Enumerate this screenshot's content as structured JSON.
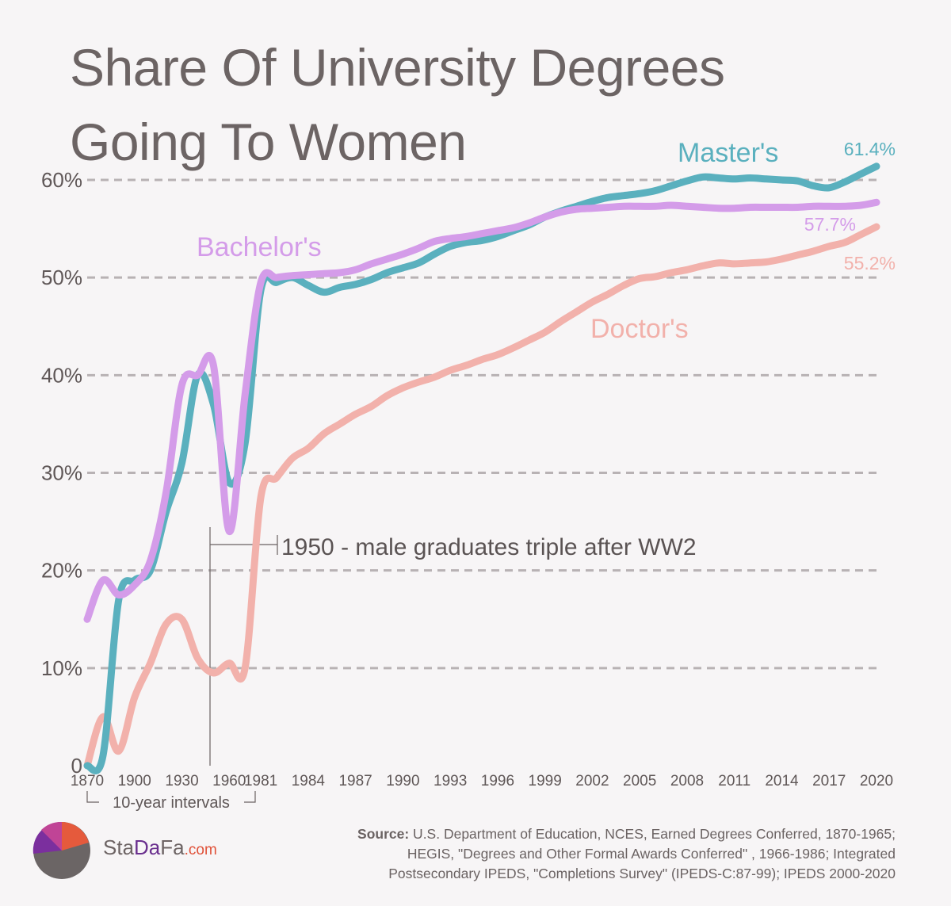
{
  "title": {
    "line1": "Share Of University Degrees",
    "line2": "Going To Women"
  },
  "chart_data": {
    "type": "line",
    "x": [
      "1870",
      "1880",
      "1890",
      "1900",
      "1910",
      "1920",
      "1930",
      "1940",
      "1950",
      "1960",
      "1970",
      "1981",
      "1982",
      "1983",
      "1984",
      "1985",
      "1986",
      "1987",
      "1988",
      "1989",
      "1990",
      "1991",
      "1992",
      "1993",
      "1994",
      "1995",
      "1996",
      "1997",
      "1998",
      "1999",
      "2000",
      "2001",
      "2002",
      "2003",
      "2004",
      "2005",
      "2006",
      "2007",
      "2008",
      "2009",
      "2010",
      "2011",
      "2012",
      "2013",
      "2014",
      "2015",
      "2016",
      "2017",
      "2018",
      "2019",
      "2020"
    ],
    "x_tick_labels": [
      "1870",
      "1900",
      "1930",
      "1960",
      "1981",
      "1984",
      "1987",
      "1990",
      "1993",
      "1996",
      "1999",
      "2002",
      "2005",
      "2008",
      "2011",
      "2014",
      "2017",
      "2020"
    ],
    "y_tick_labels": [
      "0",
      "10%",
      "20%",
      "30%",
      "40%",
      "50%",
      "60%"
    ],
    "ylim": [
      0,
      60
    ],
    "grid": true,
    "series": [
      {
        "name": "Master's",
        "color": "#5ab0be",
        "values": [
          0,
          1,
          17,
          19,
          20,
          26,
          31,
          40,
          37,
          29,
          33,
          48.7,
          49.5,
          50,
          49.2,
          48.5,
          49,
          49.3,
          49.8,
          50.5,
          51,
          51.5,
          52.4,
          53.2,
          53.6,
          53.8,
          54.2,
          54.8,
          55.4,
          56.2,
          56.8,
          57.3,
          57.8,
          58.2,
          58.4,
          58.6,
          58.9,
          59.4,
          59.9,
          60.3,
          60.2,
          60.1,
          60.2,
          60.1,
          60,
          59.9,
          59.4,
          59.2,
          59.8,
          60.6,
          61.4
        ]
      },
      {
        "name": "Bachelor's",
        "color": "#d49ce9",
        "values": [
          15,
          19,
          17.5,
          18.5,
          21,
          28,
          39,
          40,
          41,
          24,
          38,
          49.5,
          50,
          50.2,
          50.3,
          50.4,
          50.5,
          50.8,
          51.4,
          51.9,
          52.4,
          53,
          53.7,
          54,
          54.2,
          54.5,
          54.8,
          55.1,
          55.6,
          56.2,
          56.7,
          57,
          57.1,
          57.2,
          57.3,
          57.3,
          57.3,
          57.4,
          57.3,
          57.2,
          57.1,
          57.1,
          57.2,
          57.2,
          57.2,
          57.2,
          57.3,
          57.3,
          57.3,
          57.4,
          57.7
        ]
      },
      {
        "name": "Doctor's",
        "color": "#f2b1ab",
        "values": [
          0,
          5,
          1.5,
          7,
          10.5,
          14.5,
          15,
          11,
          9.5,
          10.5,
          10,
          27.5,
          29.5,
          31.5,
          32.5,
          34,
          35,
          36,
          36.8,
          37.9,
          38.7,
          39.3,
          39.8,
          40.5,
          41,
          41.6,
          42.1,
          42.8,
          43.6,
          44.4,
          45.5,
          46.5,
          47.5,
          48.3,
          49.2,
          49.9,
          50.1,
          50.5,
          50.8,
          51.2,
          51.5,
          51.4,
          51.5,
          51.6,
          51.9,
          52.3,
          52.7,
          53.2,
          53.6,
          54.4,
          55.2
        ]
      }
    ],
    "end_labels": [
      "61.4%",
      "57.7%",
      "55.2%"
    ],
    "annotation": "1950 - male graduates triple after WW2",
    "interval_note": "10-year intervals"
  },
  "brand": {
    "name_a": "Sta",
    "name_b": "Da",
    "name_c": "Fa",
    "domain": ".com"
  },
  "source": {
    "label": "Source:",
    "line1": " U.S. Department of Education, NCES, Earned Degrees Conferred, 1870-1965;",
    "line2": "HEGIS, \"Degrees and Other Formal Awards Conferred\" , 1966-1986; Integrated",
    "line3": "Postsecondary IPEDS, \"Completions Survey\" (IPEDS-C:87-99); IPEDS 2000-2020"
  }
}
